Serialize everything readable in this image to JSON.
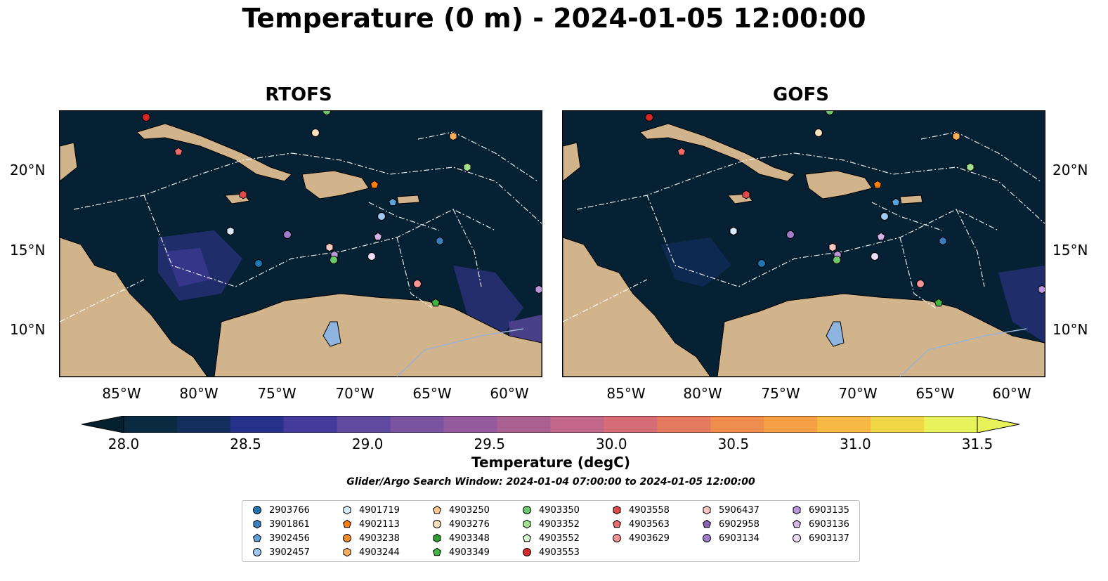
{
  "title": "Temperature (0 m) - 2024-01-05 12:00:00",
  "panels": [
    {
      "title": "RTOFS"
    },
    {
      "title": "GOFS"
    }
  ],
  "axes": {
    "lat_labels": [
      "20°N",
      "15°N",
      "10°N"
    ],
    "lon_labels": [
      "85°W",
      "80°W",
      "75°W",
      "70°W",
      "65°W",
      "60°W"
    ]
  },
  "colorbar": {
    "label": "Temperature (degC)",
    "ticks": [
      "28.0",
      "28.5",
      "29.0",
      "29.5",
      "30.0",
      "30.5",
      "31.0",
      "31.5"
    ],
    "min": 28.0,
    "max": 31.5,
    "colors": [
      "#0a2a3f",
      "#132e5c",
      "#26328a",
      "#433b9c",
      "#5f4aa0",
      "#7a54a0",
      "#935b9c",
      "#ab6092",
      "#c2668a",
      "#d66d76",
      "#e5795f",
      "#f08c4e",
      "#f6a046",
      "#f8b844",
      "#f1d746",
      "#e8f25a"
    ],
    "under_color": "#04202f",
    "over_color": "#e8f25a"
  },
  "search_window": "Glider/Argo Search Window: 2024-01-04 07:00:00 to 2024-01-05 12:00:00",
  "legend": [
    {
      "id": "2903766",
      "shape": "circle",
      "color": "#1f77b4"
    },
    {
      "id": "3901861",
      "shape": "hexagon",
      "color": "#3a7fc0"
    },
    {
      "id": "3902456",
      "shape": "pentagon",
      "color": "#5aa2dc"
    },
    {
      "id": "3902457",
      "shape": "circle",
      "color": "#9ec8ef"
    },
    {
      "id": "4901719",
      "shape": "hexagon",
      "color": "#d7ebfa"
    },
    {
      "id": "4902113",
      "shape": "pentagon",
      "color": "#ff7f0e"
    },
    {
      "id": "4903238",
      "shape": "circle",
      "color": "#f58e2a"
    },
    {
      "id": "4903244",
      "shape": "hexagon",
      "color": "#fdae5a"
    },
    {
      "id": "4903250",
      "shape": "pentagon",
      "color": "#fdc88f"
    },
    {
      "id": "4903276",
      "shape": "circle",
      "color": "#fde0c0"
    },
    {
      "id": "4903348",
      "shape": "hexagon",
      "color": "#2ca02c"
    },
    {
      "id": "4903349",
      "shape": "pentagon",
      "color": "#41b541"
    },
    {
      "id": "4903350",
      "shape": "circle",
      "color": "#6cc86c"
    },
    {
      "id": "4903352",
      "shape": "hexagon",
      "color": "#a3e18e"
    },
    {
      "id": "4903552",
      "shape": "pentagon",
      "color": "#d4f5cc"
    },
    {
      "id": "4903553",
      "shape": "circle",
      "color": "#d62728"
    },
    {
      "id": "4903558",
      "shape": "hexagon",
      "color": "#e04a4a"
    },
    {
      "id": "4903563",
      "shape": "pentagon",
      "color": "#ec6b6b"
    },
    {
      "id": "4903629",
      "shape": "circle",
      "color": "#f49494"
    },
    {
      "id": "5906437",
      "shape": "hexagon",
      "color": "#f9c6c1"
    },
    {
      "id": "6902958",
      "shape": "pentagon",
      "color": "#8b63b5"
    },
    {
      "id": "6903134",
      "shape": "circle",
      "color": "#a17cc9"
    },
    {
      "id": "6903135",
      "shape": "hexagon",
      "color": "#bb97dc"
    },
    {
      "id": "6903136",
      "shape": "pentagon",
      "color": "#d3b5ec"
    },
    {
      "id": "6903137",
      "shape": "circle",
      "color": "#ecdcf8"
    }
  ],
  "colors": {
    "land": "#d2b48c",
    "ocean_base": "#062133",
    "rivers": "#9bb3d4",
    "eez_lines": "#ffffff"
  }
}
